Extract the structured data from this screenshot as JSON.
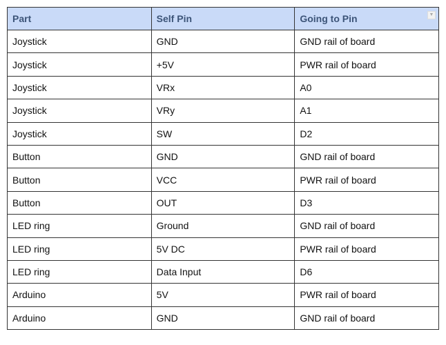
{
  "table": {
    "headers": [
      "Part",
      "Self Pin",
      "Going to Pin"
    ],
    "rows": [
      [
        "Joystick",
        "GND",
        "GND rail of board"
      ],
      [
        "Joystick",
        "+5V",
        "PWR rail of board"
      ],
      [
        "Joystick",
        "VRx",
        "A0"
      ],
      [
        "Joystick",
        "VRy",
        "A1"
      ],
      [
        "Joystick",
        "SW",
        "D2"
      ],
      [
        "Button",
        "GND",
        "GND rail of board"
      ],
      [
        "Button",
        "VCC",
        "PWR rail of board"
      ],
      [
        "Button",
        "OUT",
        "D3"
      ],
      [
        "LED ring",
        "Ground",
        "GND rail of board"
      ],
      [
        "LED ring",
        "5V DC",
        "PWR rail of board"
      ],
      [
        "LED ring",
        "Data Input",
        "D6"
      ],
      [
        "Arduino",
        "5V",
        "PWR rail of board"
      ],
      [
        "Arduino",
        "GND",
        "GND rail of board"
      ]
    ]
  },
  "colors": {
    "header_bg": "#c9daf8",
    "header_text": "#3c5478"
  },
  "icons": {
    "filter": "dropdown-arrow-icon"
  }
}
